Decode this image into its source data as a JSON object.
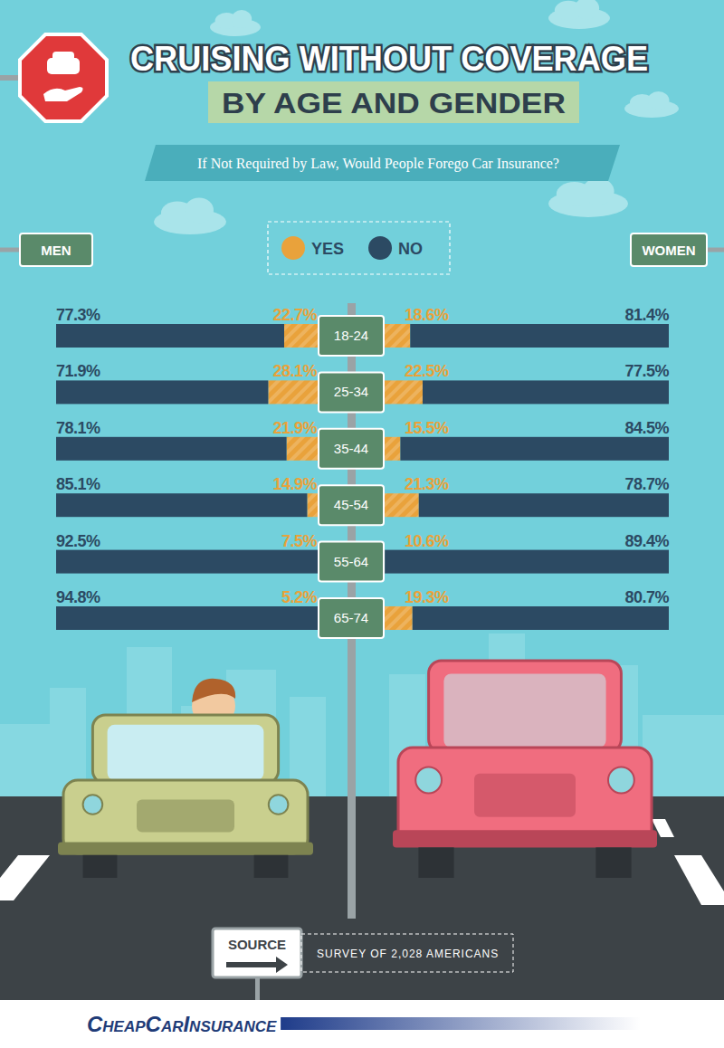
{
  "title": "CRUISING WITHOUT COVERAGE",
  "subtitle": "BY AGE AND GENDER",
  "question": "If Not Required by Law, Would People Forego Car Insurance?",
  "source_label": "SOURCE",
  "source": "SURVEY OF 2,028 AMERICANS",
  "logo": "CheapCarInsurance",
  "chart_data": [
    {
      "type": "bar",
      "title": "MEN",
      "orientation": "horizontal",
      "stacked": true,
      "data_labels": true,
      "tick_labels": "y",
      "legend": "top",
      "xlim": [
        0,
        100
      ],
      "categories": [
        "18-24",
        "25-34",
        "35-44",
        "45-54",
        "55-64",
        "65-74"
      ],
      "series": [
        {
          "name": "YES",
          "color": "#e9a23b",
          "values": [
            22.7,
            28.1,
            21.9,
            14.9,
            7.5,
            5.2
          ],
          "value_labels": [
            "22.7%",
            "28.1%",
            "21.9%",
            "14.9%",
            "7.5%",
            "5.2%"
          ]
        },
        {
          "name": "NO",
          "color": "#2c4a63",
          "values": [
            77.3,
            71.9,
            78.1,
            85.1,
            92.5,
            94.8
          ],
          "value_labels": [
            "77.3%",
            "71.9%",
            "78.1%",
            "85.1%",
            "92.5%",
            "94.8%"
          ]
        }
      ]
    },
    {
      "type": "bar",
      "title": "WOMEN",
      "orientation": "horizontal",
      "stacked": true,
      "data_labels": true,
      "tick_labels": "y",
      "legend": "top",
      "xlim": [
        0,
        100
      ],
      "categories": [
        "18-24",
        "25-34",
        "35-44",
        "45-54",
        "55-64",
        "65-74"
      ],
      "series": [
        {
          "name": "YES",
          "color": "#e9a23b",
          "values": [
            18.6,
            22.5,
            15.5,
            21.3,
            10.6,
            19.3
          ],
          "value_labels": [
            "18.6%",
            "22.5%",
            "15.5%",
            "21.3%",
            "10.6%",
            "19.3%"
          ]
        },
        {
          "name": "NO",
          "color": "#2c4a63",
          "values": [
            81.4,
            77.5,
            84.5,
            78.7,
            89.4,
            80.7
          ],
          "value_labels": [
            "81.4%",
            "77.5%",
            "84.5%",
            "78.7%",
            "89.4%",
            "80.7%"
          ]
        }
      ]
    }
  ]
}
